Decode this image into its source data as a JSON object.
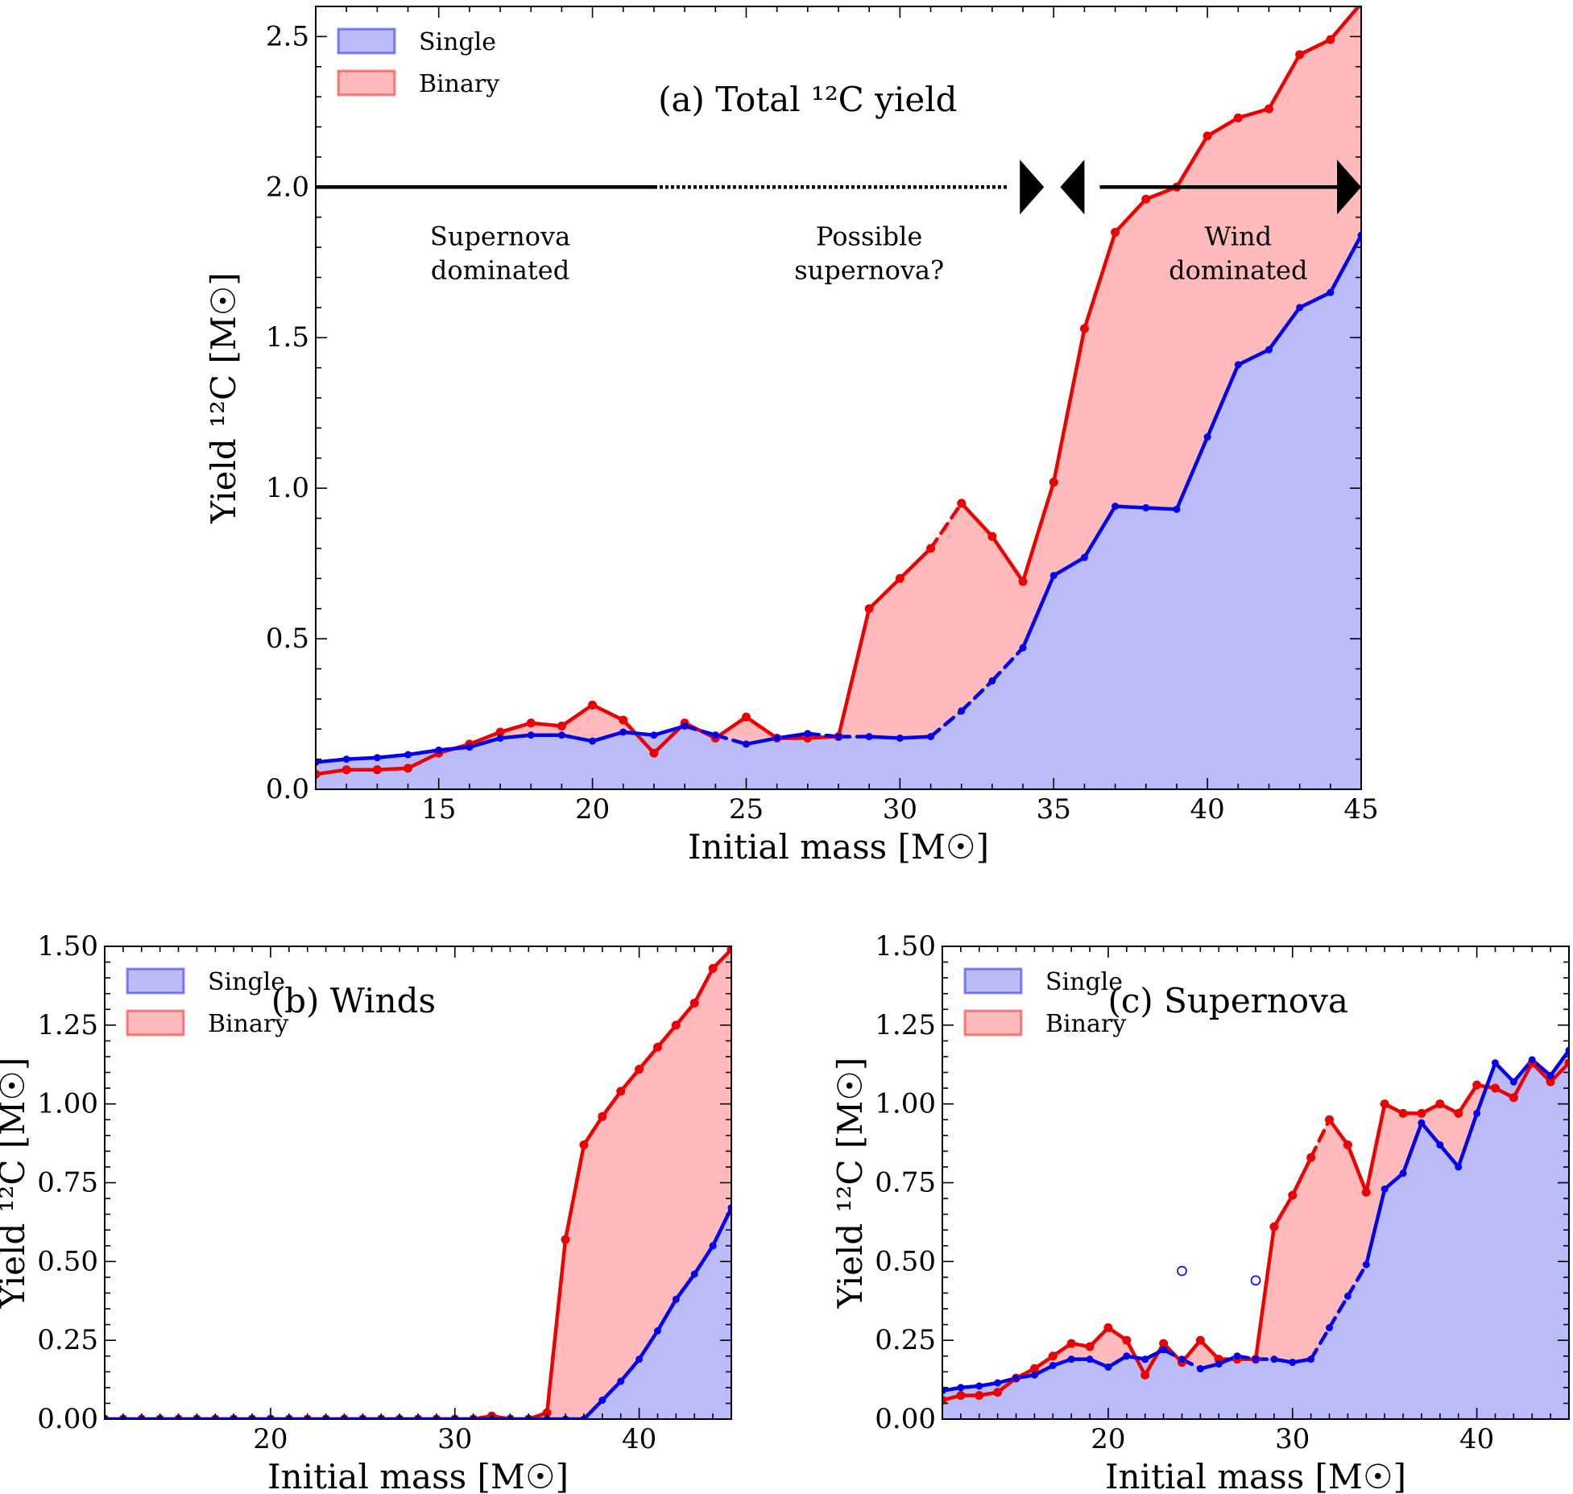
{
  "chart_data": [
    {
      "id": "a",
      "type": "area",
      "title": "(a) Total ¹²C yield",
      "xlabel": "Initial mass [M☉]",
      "ylabel": "Yield ¹²C [M☉]",
      "xlim": [
        11,
        45
      ],
      "ylim": [
        0,
        2.6
      ],
      "xticks": [
        15,
        20,
        25,
        30,
        35,
        40,
        45
      ],
      "yticks": [
        0.0,
        0.5,
        1.0,
        1.5,
        2.0,
        2.5
      ],
      "ytick_decimals": 1,
      "legend": {
        "position": "top-left",
        "entries": [
          "Single",
          "Binary"
        ]
      },
      "series": [
        {
          "name": "Single",
          "color": "#0000ee",
          "fill": "#bbbbfa",
          "x": [
            11,
            12,
            13,
            14,
            15,
            16,
            17,
            18,
            19,
            20,
            21,
            22,
            23,
            24,
            25,
            26,
            27,
            28,
            29,
            30,
            31,
            32,
            33,
            34,
            35,
            36,
            37,
            38,
            39,
            40,
            41,
            42,
            43,
            44,
            45
          ],
          "y": [
            0.09,
            0.1,
            0.105,
            0.115,
            0.13,
            0.14,
            0.17,
            0.18,
            0.18,
            0.16,
            0.19,
            0.18,
            0.21,
            0.18,
            0.15,
            0.17,
            0.185,
            0.175,
            0.175,
            0.17,
            0.175,
            0.26,
            0.36,
            0.47,
            0.71,
            0.77,
            0.94,
            0.935,
            0.93,
            1.17,
            1.41,
            1.46,
            1.6,
            1.65,
            1.84
          ],
          "dashed_ranges": [
            [
              23,
              25
            ],
            [
              27,
              29
            ],
            [
              31,
              34
            ]
          ]
        },
        {
          "name": "Binary",
          "color": "#ee0000",
          "fill": "#ffbbbb",
          "x": [
            11,
            12,
            13,
            14,
            15,
            16,
            17,
            18,
            19,
            20,
            21,
            22,
            23,
            24,
            25,
            26,
            27,
            28,
            29,
            30,
            31,
            32,
            33,
            34,
            35,
            36,
            37,
            38,
            39,
            40,
            41,
            42,
            43,
            44,
            45
          ],
          "y": [
            0.05,
            0.065,
            0.065,
            0.07,
            0.12,
            0.15,
            0.19,
            0.22,
            0.21,
            0.28,
            0.23,
            0.12,
            0.22,
            0.17,
            0.24,
            0.17,
            0.17,
            0.175,
            0.6,
            0.7,
            0.8,
            0.95,
            0.84,
            0.69,
            1.02,
            1.53,
            1.85,
            1.96,
            2.0,
            2.17,
            2.23,
            2.26,
            2.44,
            2.49,
            2.61
          ],
          "dashed_ranges": [
            [
              31,
              32
            ]
          ]
        }
      ],
      "regions": [
        {
          "label": "Supernova\ndominated",
          "x_label": 17.0,
          "from": 11,
          "to": 22,
          "style": "solid"
        },
        {
          "label": "Possible\nsupernova?",
          "x_label": 29.0,
          "from": 22,
          "to": 34,
          "style": "dotted"
        },
        {
          "label": "Wind\ndominated",
          "x_label": 41.0,
          "from": 35,
          "to": 45,
          "style": "solid"
        }
      ],
      "region_line_y": 2.0
    },
    {
      "id": "b",
      "type": "area",
      "title": "(b) Winds",
      "xlabel": "Initial mass [M☉]",
      "ylabel": "Yield ¹²C [M☉]",
      "xlim": [
        11,
        45
      ],
      "ylim": [
        0,
        1.5
      ],
      "xticks": [
        20,
        30,
        40
      ],
      "yticks": [
        0.0,
        0.25,
        0.5,
        0.75,
        1.0,
        1.25,
        1.5
      ],
      "ytick_decimals": 2,
      "legend": {
        "position": "top-left",
        "entries": [
          "Single",
          "Binary"
        ]
      },
      "series": [
        {
          "name": "Single",
          "color": "#0000ee",
          "fill": "#bbbbfa",
          "x": [
            11,
            12,
            13,
            14,
            15,
            16,
            17,
            18,
            19,
            20,
            21,
            22,
            23,
            24,
            25,
            26,
            27,
            28,
            29,
            30,
            31,
            32,
            33,
            34,
            35,
            36,
            37,
            38,
            39,
            40,
            41,
            42,
            43,
            44,
            45
          ],
          "y": [
            0,
            0,
            0,
            0,
            0,
            0,
            0,
            0,
            0,
            0,
            0,
            0,
            0,
            0,
            0,
            0,
            0,
            0,
            0,
            0,
            0,
            0,
            0,
            0,
            0,
            0,
            0,
            0.06,
            0.12,
            0.19,
            0.28,
            0.38,
            0.46,
            0.55,
            0.67
          ],
          "dashed_ranges": []
        },
        {
          "name": "Binary",
          "color": "#ee0000",
          "fill": "#ffbbbb",
          "x": [
            11,
            12,
            13,
            14,
            15,
            16,
            17,
            18,
            19,
            20,
            21,
            22,
            23,
            24,
            25,
            26,
            27,
            28,
            29,
            30,
            31,
            32,
            33,
            34,
            35,
            36,
            37,
            38,
            39,
            40,
            41,
            42,
            43,
            44,
            45
          ],
          "y": [
            0,
            0,
            0,
            0,
            0,
            0,
            0,
            0,
            0,
            0,
            0,
            0,
            0,
            0,
            0,
            0,
            0,
            0,
            0,
            0,
            0,
            0.01,
            0,
            0,
            0.02,
            0.57,
            0.87,
            0.96,
            1.04,
            1.11,
            1.18,
            1.25,
            1.32,
            1.43,
            1.49
          ],
          "dashed_ranges": []
        }
      ]
    },
    {
      "id": "c",
      "type": "area",
      "title": "(c) Supernova",
      "xlabel": "Initial mass [M☉]",
      "ylabel": "Yield ¹²C [M☉]",
      "xlim": [
        11,
        45
      ],
      "ylim": [
        0,
        1.5
      ],
      "xticks": [
        20,
        30,
        40
      ],
      "yticks": [
        0.0,
        0.25,
        0.5,
        0.75,
        1.0,
        1.25,
        1.5
      ],
      "ytick_decimals": 2,
      "legend": {
        "position": "top-left",
        "entries": [
          "Single",
          "Binary"
        ]
      },
      "series": [
        {
          "name": "Single",
          "color": "#0000ee",
          "fill": "#bbbbfa",
          "x": [
            11,
            12,
            13,
            14,
            15,
            16,
            17,
            18,
            19,
            20,
            21,
            22,
            23,
            24,
            25,
            26,
            27,
            28,
            29,
            30,
            31,
            32,
            33,
            34,
            35,
            36,
            37,
            38,
            39,
            40,
            41,
            42,
            43,
            44,
            45
          ],
          "y": [
            0.09,
            0.1,
            0.105,
            0.115,
            0.13,
            0.14,
            0.17,
            0.19,
            0.19,
            0.165,
            0.2,
            0.19,
            0.22,
            0.19,
            0.16,
            0.175,
            0.2,
            0.19,
            0.19,
            0.18,
            0.19,
            0.29,
            0.39,
            0.49,
            0.73,
            0.78,
            0.94,
            0.87,
            0.8,
            0.97,
            1.13,
            1.07,
            1.14,
            1.09,
            1.17
          ],
          "dashed_ranges": [
            [
              23,
              25
            ],
            [
              27,
              29
            ],
            [
              31,
              34
            ]
          ]
        },
        {
          "name": "Binary",
          "color": "#ee0000",
          "fill": "#ffbbbb",
          "x": [
            11,
            12,
            13,
            14,
            15,
            16,
            17,
            18,
            19,
            20,
            21,
            22,
            23,
            24,
            25,
            26,
            27,
            28,
            29,
            30,
            31,
            32,
            33,
            34,
            35,
            36,
            37,
            38,
            39,
            40,
            41,
            42,
            43,
            44,
            45
          ],
          "y": [
            0.06,
            0.075,
            0.075,
            0.085,
            0.13,
            0.16,
            0.2,
            0.24,
            0.23,
            0.29,
            0.25,
            0.14,
            0.24,
            0.18,
            0.25,
            0.19,
            0.19,
            0.19,
            0.61,
            0.71,
            0.83,
            0.95,
            0.87,
            0.72,
            1.0,
            0.97,
            0.97,
            1.0,
            0.97,
            1.06,
            1.05,
            1.02,
            1.13,
            1.07,
            1.13
          ],
          "dashed_ranges": [
            [
              31,
              32
            ]
          ]
        }
      ],
      "open_markers": [
        {
          "x": 24,
          "y": 0.47
        },
        {
          "x": 28,
          "y": 0.44
        }
      ]
    }
  ]
}
